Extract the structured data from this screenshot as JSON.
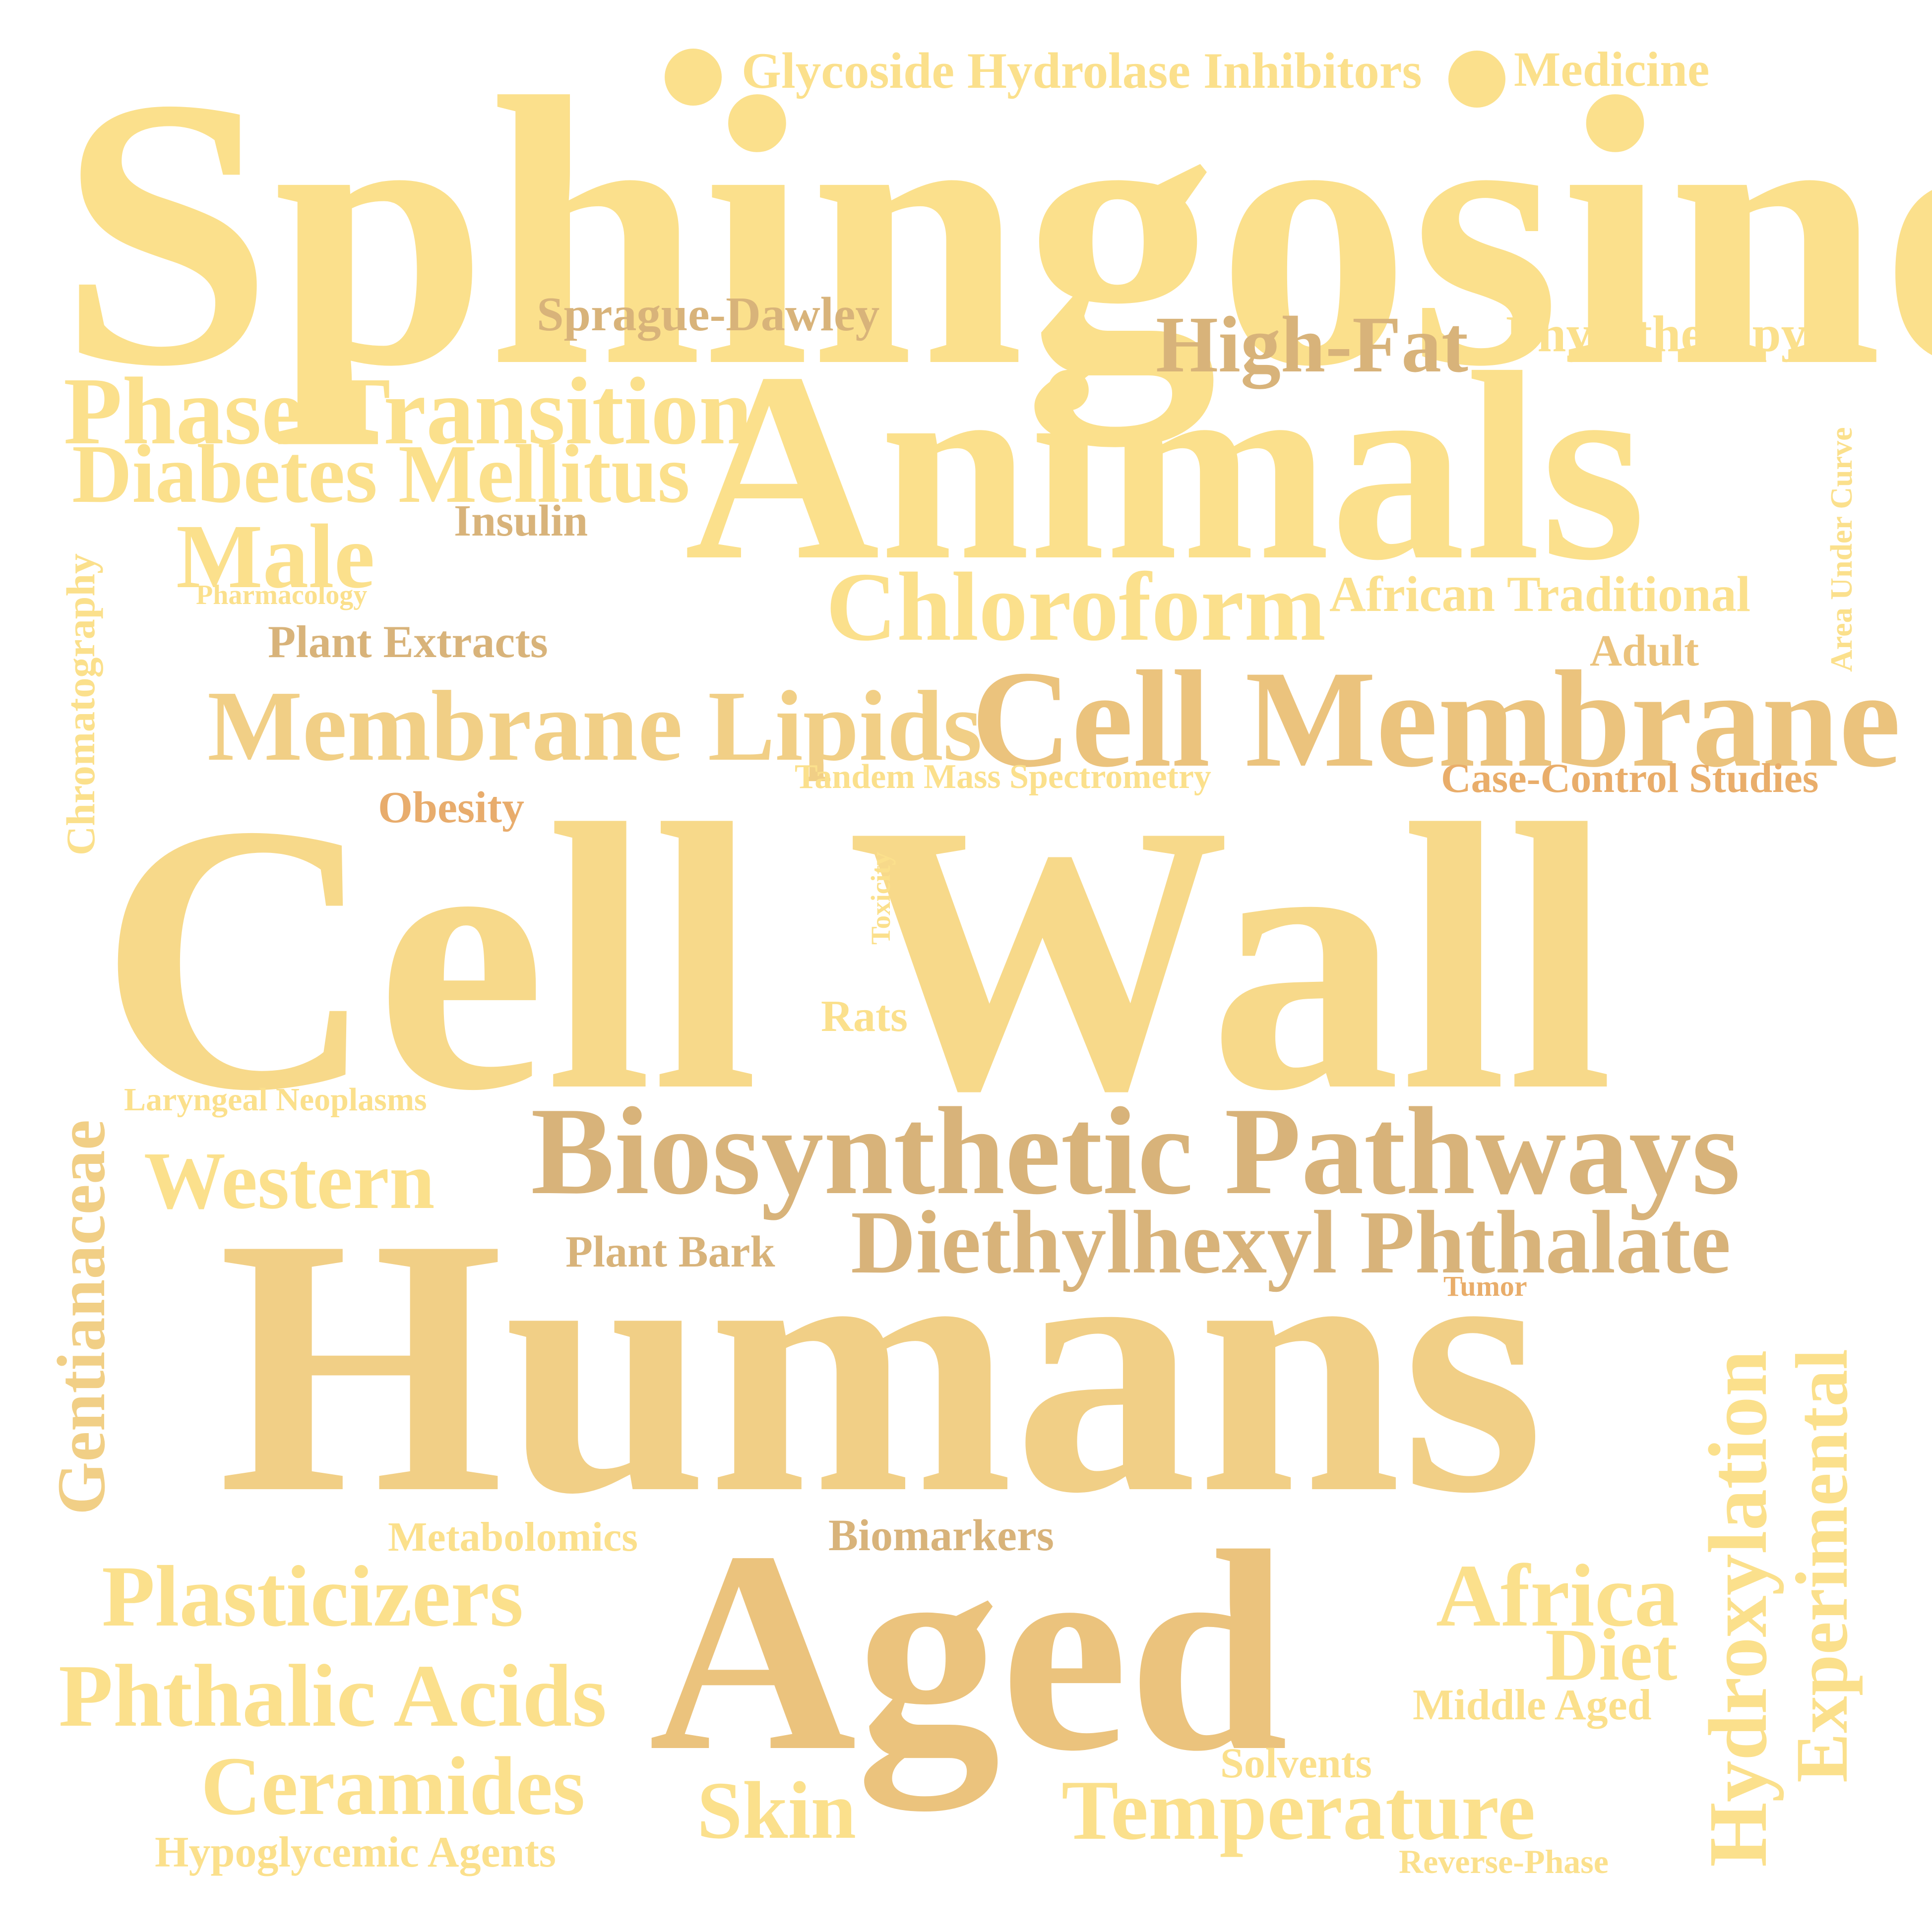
{
  "colors": {
    "pale": "#fbe08c",
    "light": "#f7d98a",
    "mid": "#f1cf86",
    "warm": "#ebc37d",
    "tan": "#d8b37a",
    "amber": "#e9ad6a",
    "orange": "#e8ac6c"
  },
  "words": {
    "sphingosine": "Sphingosine",
    "glycoside": "Glycoside Hydrolase Inhibitors",
    "medicine": "Medicine",
    "sprague": "Sprague-Dawley",
    "highfat": "High-Fat",
    "phytotherapy": "Phytotherapy",
    "phase": "Phase Transition",
    "animals": "Animals",
    "diabetes": "Diabetes Mellitus",
    "insulin": "Insulin",
    "areacurve": "Area Under Curve",
    "chromatography": "Chromatography",
    "male": "Male",
    "pharmacology": "Pharmacology",
    "chloroform": "Chloroform",
    "african": "African Traditional",
    "plantextracts": "Plant Extracts",
    "adult": "Adult",
    "membranelipids": "Membrane Lipids",
    "cellmembrane": "Cell Membrane",
    "tandem": "Tandem Mass Spectrometry",
    "casecontrol": "Case-Control Studies",
    "obesity": "Obesity",
    "cellwall": "Cell Wall",
    "toxicity": "Toxicity",
    "rats": "Rats",
    "gentianaceae": "Gentianaceae",
    "laryngeal": "Laryngeal Neoplasms",
    "biosynthetic": "Biosynthetic Pathways",
    "western": "Western",
    "plantbark": "Plant Bark",
    "diethylhexyl": "Diethylhexyl Phthalate",
    "tumor": "Tumor",
    "humans": "Humans",
    "hydroxylation": "Hydroxylation",
    "experimental": "Experimental",
    "metabolomics": "Metabolomics",
    "biomarkers": "Biomarkers",
    "plasticizers": "Plasticizers",
    "aged": "Aged",
    "africa": "Africa",
    "diet": "Diet",
    "phthalic": "Phthalic Acids",
    "middleaged": "Middle Aged",
    "ceramides": "Ceramides",
    "solvents": "Solvents",
    "skin": "Skin",
    "temperature": "Temperature",
    "hypoglycemic": "Hypoglycemic Agents",
    "reversephase": "Reverse-Phase"
  }
}
